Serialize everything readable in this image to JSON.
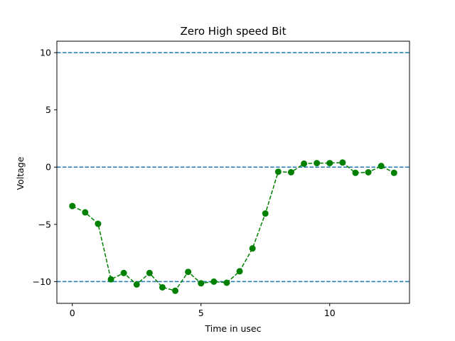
{
  "chart_data": {
    "type": "line",
    "title": "Zero High speed Bit",
    "xlabel": "Time in usec",
    "ylabel": "Voltage",
    "xlim": [
      -1.2,
      26.0
    ],
    "ylim": [
      -11.9,
      11.0
    ],
    "xticks": [
      0,
      5,
      10
    ],
    "yticks": [
      -10,
      -5,
      0,
      5,
      10
    ],
    "ytick_labels": [
      "−10",
      "−5",
      "0",
      "5",
      "10"
    ],
    "grid": false,
    "legend": "none",
    "reference_lines": [
      {
        "y": 10,
        "style": "dashed",
        "color": "#1f77b4"
      },
      {
        "y": 0,
        "style": "dashed",
        "color": "#1f77b4"
      },
      {
        "y": -10,
        "style": "dashed",
        "color": "#1f77b4"
      }
    ],
    "series": [
      {
        "color": "#008000",
        "line_style": "dashed",
        "marker": "circle",
        "x": [
          0,
          0.5,
          1,
          1.5,
          2,
          2.5,
          3,
          3.5,
          4,
          4.5,
          5,
          5.5,
          6,
          6.5,
          7,
          7.5,
          8,
          8.5,
          9,
          9.5,
          10,
          10.5,
          11,
          11.5,
          12,
          12.5
        ],
        "y": [
          -3.4,
          -3.95,
          -4.95,
          -9.8,
          -9.25,
          -10.25,
          -9.25,
          -10.5,
          -10.8,
          -9.15,
          -10.15,
          -10.0,
          -10.1,
          -9.1,
          -7.1,
          -4.05,
          -0.4,
          -0.45,
          0.3,
          0.35,
          0.35,
          0.4,
          -0.5,
          -0.45,
          0.1,
          -0.5
        ]
      }
    ]
  }
}
